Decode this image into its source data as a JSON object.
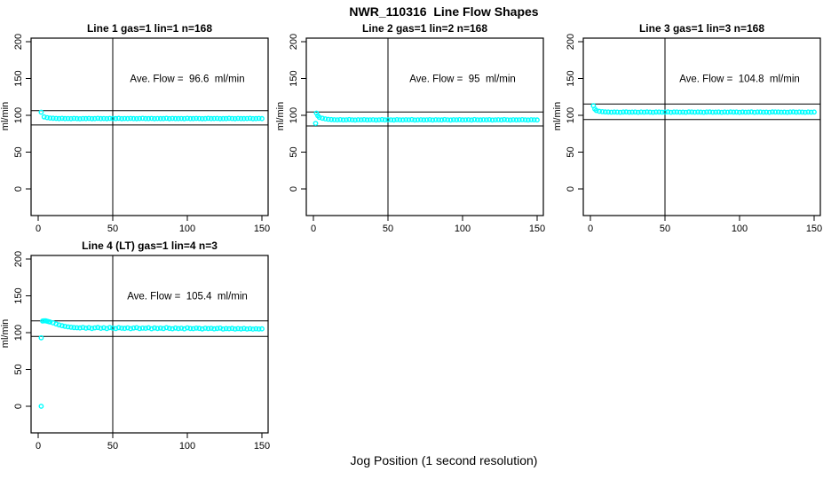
{
  "page": {
    "title": "NWR_110316  Line Flow Shapes",
    "xlabel": "Jog Position (1 second resolution)",
    "background": "#ffffff",
    "axis_color": "#000000",
    "marker_color": "#00ffff"
  },
  "chart_data": [
    {
      "type": "scatter",
      "title": "Line 1 gas=1 lin=1 n=168",
      "annotation": "Ave. Flow =  96.6  ml/min",
      "ave_flow": 96.6,
      "ylabel": "ml/min",
      "xticks": [
        0,
        50,
        100,
        150
      ],
      "yticks": [
        0,
        50,
        100,
        150,
        200
      ],
      "xlim": [
        0,
        150
      ],
      "ylim": [
        0,
        200
      ],
      "vline": 50,
      "hlines": [
        106.3,
        86.9
      ],
      "extra_points": [
        [
          2,
          104.2
        ]
      ],
      "series": {
        "x_start": 4,
        "x_step": 2,
        "y": [
          97.8,
          96.9,
          96.3,
          96.0,
          95.8,
          95.6,
          95.9,
          95.5,
          95.7,
          95.4,
          95.8,
          95.6,
          95.3,
          95.7,
          95.5,
          95.8,
          95.4,
          95.6,
          95.9,
          95.5,
          95.7,
          95.4,
          95.8,
          95.6,
          95.5,
          95.9,
          95.4,
          95.7,
          95.5,
          95.8,
          95.6,
          95.4,
          95.7,
          95.9,
          95.5,
          95.6,
          95.8,
          95.4,
          95.7,
          95.5,
          95.6,
          95.9,
          95.4,
          95.8,
          95.6,
          95.5,
          95.7,
          95.4,
          95.9,
          95.6,
          95.5,
          95.8,
          95.7,
          95.4,
          95.6,
          95.9,
          95.5,
          95.7,
          95.8,
          95.4,
          95.6,
          95.5,
          95.9,
          95.7,
          95.4,
          95.8,
          95.6,
          95.5,
          95.7,
          95.9,
          95.4,
          95.6,
          95.8,
          95.5
        ]
      }
    },
    {
      "type": "scatter",
      "title": "Line 2 gas=1 lin=2 n=168",
      "annotation": "Ave. Flow =  95  ml/min",
      "ave_flow": 95,
      "ylabel": "ml/min",
      "xticks": [
        0,
        50,
        100,
        150
      ],
      "yticks": [
        0,
        50,
        100,
        150,
        200
      ],
      "xlim": [
        0,
        150
      ],
      "ylim": [
        0,
        200
      ],
      "vline": 50,
      "hlines": [
        104.5,
        85.5
      ],
      "extra_points": [
        [
          1.5,
          89.0
        ],
        [
          2,
          103.0
        ],
        [
          3,
          99.5
        ]
      ],
      "series": {
        "x_start": 4,
        "x_step": 2,
        "y": [
          97.2,
          96.0,
          95.2,
          94.6,
          94.2,
          94.0,
          93.8,
          94.1,
          93.7,
          93.9,
          94.2,
          93.8,
          93.6,
          94.0,
          93.8,
          94.1,
          93.7,
          93.9,
          94.0,
          93.6,
          93.8,
          94.2,
          93.7,
          94.0,
          93.8,
          93.6,
          94.1,
          93.9,
          93.7,
          94.0,
          93.8,
          94.2,
          93.6,
          93.9,
          94.0,
          93.7,
          93.8,
          94.1,
          93.6,
          94.0,
          93.9,
          93.7,
          94.2,
          93.8,
          93.6,
          94.0,
          93.9,
          94.1,
          93.7,
          93.8,
          94.0,
          93.6,
          94.2,
          93.9,
          93.7,
          94.0,
          93.8,
          94.1,
          93.6,
          93.9,
          94.0,
          93.7,
          94.2,
          93.8,
          93.6,
          94.0,
          93.7,
          93.9,
          94.1,
          93.8,
          93.6,
          94.0,
          93.9,
          93.7
        ]
      }
    },
    {
      "type": "scatter",
      "title": "Line 3 gas=1 lin=3 n=168",
      "annotation": "Ave. Flow =  104.8  ml/min",
      "ave_flow": 104.8,
      "ylabel": "ml/min",
      "xticks": [
        0,
        50,
        100,
        150
      ],
      "yticks": [
        0,
        50,
        100,
        150,
        200
      ],
      "xlim": [
        0,
        150
      ],
      "ylim": [
        0,
        200
      ],
      "vline": 50,
      "hlines": [
        115.3,
        94.3
      ],
      "extra_points": [
        [
          2,
          113.0
        ],
        [
          3,
          108.5
        ]
      ],
      "series": {
        "x_start": 4,
        "x_step": 2,
        "y": [
          106.5,
          105.4,
          104.9,
          104.6,
          104.4,
          104.2,
          104.5,
          104.3,
          104.1,
          104.4,
          104.6,
          104.2,
          104.3,
          104.5,
          104.1,
          104.4,
          104.2,
          104.6,
          104.3,
          104.1,
          104.5,
          104.4,
          104.2,
          104.3,
          104.6,
          104.1,
          104.4,
          104.5,
          104.2,
          104.3,
          104.1,
          104.6,
          104.4,
          104.2,
          104.5,
          104.3,
          104.1,
          104.4,
          104.6,
          104.2,
          104.3,
          104.5,
          104.1,
          104.4,
          104.2,
          104.6,
          104.3,
          104.5,
          104.1,
          104.4,
          104.2,
          104.3,
          104.6,
          104.1,
          104.5,
          104.4,
          104.2,
          104.3,
          104.1,
          104.6,
          104.4,
          104.5,
          104.2,
          104.3,
          104.1,
          104.4,
          104.6,
          104.2,
          104.5,
          104.3,
          104.1,
          104.4,
          104.2,
          104.5
        ]
      }
    },
    {
      "type": "scatter",
      "title": "Line 4 (LT) gas=1 lin=4 n=3",
      "annotation": "Ave. Flow =  105.4  ml/min",
      "ave_flow": 105.4,
      "ylabel": "ml/min",
      "xticks": [
        0,
        50,
        100,
        150
      ],
      "yticks": [
        0,
        50,
        100,
        150,
        200
      ],
      "xlim": [
        0,
        150
      ],
      "ylim": [
        0,
        200
      ],
      "vline": 50,
      "hlines": [
        115.9,
        94.9
      ],
      "extra_points": [
        [
          2,
          0
        ],
        [
          2,
          93.0
        ],
        [
          3,
          115.8
        ],
        [
          4,
          116.2
        ],
        [
          5,
          116.0
        ],
        [
          6,
          115.5
        ],
        [
          7,
          115.0
        ]
      ],
      "series": {
        "x_start": 8,
        "x_step": 2,
        "y": [
          114.5,
          113.2,
          111.8,
          110.5,
          109.4,
          108.5,
          107.8,
          107.3,
          106.9,
          106.6,
          106.4,
          107.1,
          106.0,
          106.8,
          105.7,
          106.5,
          107.0,
          105.9,
          106.6,
          105.6,
          106.9,
          106.2,
          105.5,
          106.7,
          106.0,
          105.8,
          106.5,
          105.4,
          106.3,
          106.8,
          105.6,
          106.1,
          105.9,
          106.6,
          105.3,
          106.4,
          105.7,
          106.2,
          105.5,
          106.7,
          105.8,
          105.3,
          106.3,
          105.6,
          106.0,
          105.2,
          106.5,
          105.7,
          105.4,
          106.2,
          105.8,
          105.1,
          106.0,
          105.5,
          105.9,
          105.2,
          105.7,
          106.1,
          105.0,
          105.6,
          105.3,
          105.8,
          104.9,
          105.5,
          105.1,
          105.7,
          105.0,
          105.4,
          104.8,
          105.3,
          104.9,
          105.2
        ]
      }
    }
  ]
}
